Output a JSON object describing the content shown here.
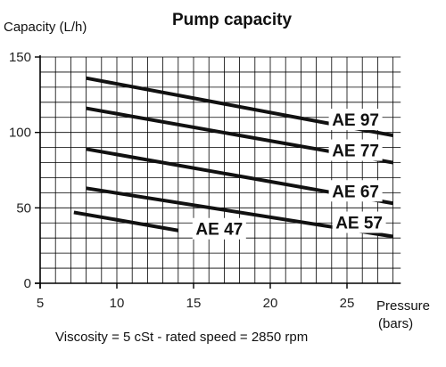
{
  "chart_data": {
    "type": "line",
    "title": "Pump capacity",
    "ylabel": "Capacity  (L/h)",
    "xlabel": "Pressure",
    "xlabel_unit": "(bars)",
    "note": "Viscosity = 5 cSt  -  rated speed = 2850 rpm",
    "xlim": [
      5,
      28.5
    ],
    "ylim": [
      0,
      150
    ],
    "x_ticks": [
      5,
      10,
      15,
      20,
      25
    ],
    "y_ticks": [
      0,
      50,
      100,
      150
    ],
    "grid": true,
    "series": [
      {
        "name": "AE 97",
        "x": [
          8,
          28
        ],
        "y": [
          136,
          98
        ]
      },
      {
        "name": "AE 77",
        "x": [
          8,
          28
        ],
        "y": [
          116,
          80
        ]
      },
      {
        "name": "AE 67",
        "x": [
          8,
          28
        ],
        "y": [
          89,
          53
        ]
      },
      {
        "name": "AE 57",
        "x": [
          8,
          28
        ],
        "y": [
          63,
          31
        ]
      },
      {
        "name": "AE 47",
        "x": [
          7.2,
          14
        ],
        "y": [
          47,
          35
        ]
      }
    ]
  }
}
